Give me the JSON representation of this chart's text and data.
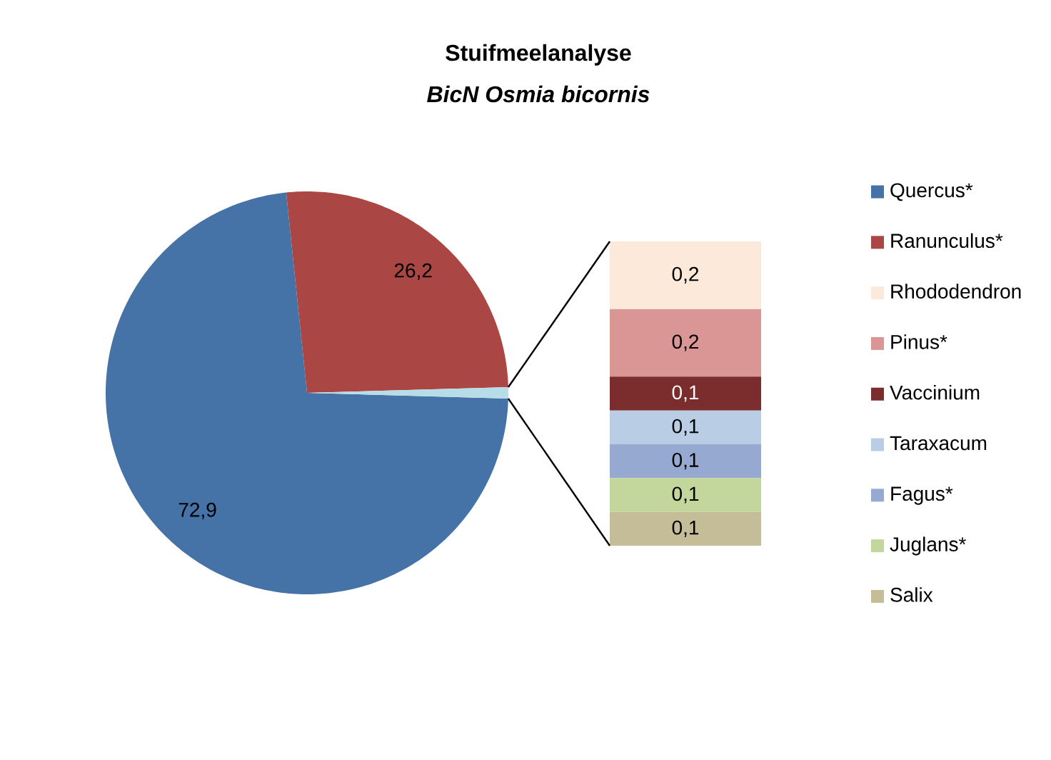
{
  "chart_data": [
    {
      "type": "pie",
      "title": "Stuifmeelanalyse",
      "subtitle": "BicN Osmia bicornis",
      "categories": [
        "Quercus*",
        "Ranunculus*",
        null
      ],
      "values": [
        72.9,
        26.2,
        0.9
      ],
      "colors": [
        "#4572a7",
        "#aa4643",
        "#b6dde8"
      ],
      "value_labels": [
        "72,9",
        "26,2",
        null
      ],
      "legend": "right"
    },
    {
      "type": "bar",
      "stacked": true,
      "categories": [
        null
      ],
      "series": [
        {
          "name": "Salix",
          "color": "#c4bd97",
          "values": [
            0.1
          ],
          "value_labels": [
            "0,1"
          ]
        },
        {
          "name": "Juglans*",
          "color": "#c3d69b",
          "values": [
            0.1
          ],
          "value_labels": [
            "0,1"
          ]
        },
        {
          "name": "Fagus*",
          "color": "#95a9d1",
          "values": [
            0.1
          ],
          "value_labels": [
            "0,1"
          ]
        },
        {
          "name": "Taraxacum",
          "color": "#b9cde5",
          "values": [
            0.1
          ],
          "value_labels": [
            "0,1"
          ]
        },
        {
          "name": "Vaccinium",
          "color": "#7b2c2c",
          "values": [
            0.1
          ],
          "value_labels": [
            "0,1"
          ]
        },
        {
          "name": "Pinus*",
          "color": "#d99694",
          "values": [
            0.2
          ],
          "value_labels": [
            "0,2"
          ]
        },
        {
          "name": "Rhododendron",
          "color": "#fde9d9",
          "values": [
            0.2
          ],
          "value_labels": [
            "0,2"
          ]
        }
      ],
      "legend": "right"
    }
  ]
}
